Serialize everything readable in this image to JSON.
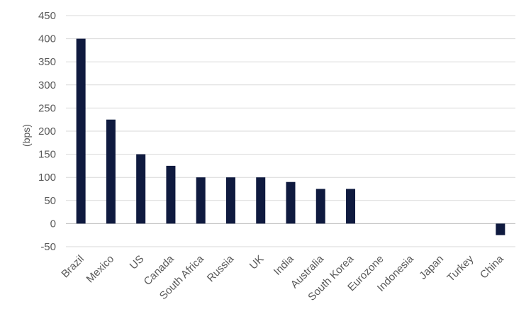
{
  "chart_data": {
    "type": "bar",
    "title": "",
    "xlabel": "",
    "ylabel": "(bps)",
    "ylim": [
      -50,
      450
    ],
    "yticks": [
      -50,
      0,
      50,
      100,
      150,
      200,
      250,
      300,
      350,
      400,
      450
    ],
    "grid": true,
    "legend": "none",
    "bar_color": "#0f1a3f",
    "categories": [
      "Brazil",
      "Mexico",
      "US",
      "Canada",
      "South Africa",
      "Russia",
      "UK",
      "India",
      "Australia",
      "South Korea",
      "Eurozone",
      "Indonesia",
      "Japan",
      "Turkey",
      "China"
    ],
    "values": [
      400,
      225,
      150,
      125,
      100,
      100,
      100,
      90,
      75,
      75,
      0,
      0,
      0,
      0,
      -25
    ]
  }
}
